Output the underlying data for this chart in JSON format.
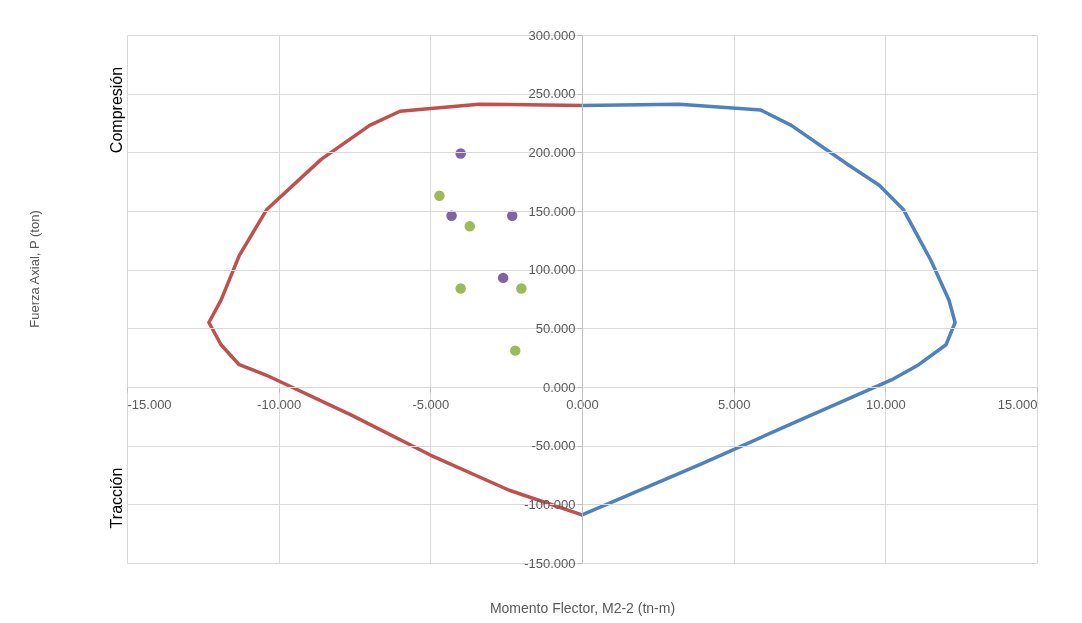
{
  "chart_data": {
    "type": "line",
    "xlabel": "Momento Flector, M2-2 (tn-m)",
    "annotations": [
      "Fuerza Axial, P (ton)",
      "Compresión",
      "Tracción"
    ],
    "xlim": [
      -15,
      15
    ],
    "ylim": [
      -150,
      300
    ],
    "xticks": [
      {
        "value": -15,
        "label": "-15.000"
      },
      {
        "value": -10,
        "label": "-10.000"
      },
      {
        "value": -5,
        "label": "-5.000"
      },
      {
        "value": 0,
        "label": "0.000"
      },
      {
        "value": 5,
        "label": "5.000"
      },
      {
        "value": 10,
        "label": "10.000"
      },
      {
        "value": 15,
        "label": "15.000"
      }
    ],
    "yticks": [
      {
        "value": -150,
        "label": "-150.000"
      },
      {
        "value": -100,
        "label": "-100.000"
      },
      {
        "value": -50,
        "label": "-50.000"
      },
      {
        "value": 0,
        "label": "0.000"
      },
      {
        "value": 50,
        "label": "50.000"
      },
      {
        "value": 100,
        "label": "100.000"
      },
      {
        "value": 150,
        "label": "150.000"
      },
      {
        "value": 200,
        "label": "200.000"
      },
      {
        "value": 250,
        "label": "250.000"
      },
      {
        "value": 300,
        "label": "300.000"
      }
    ],
    "grid": true,
    "series": [
      {
        "type": "line",
        "color": "#c0504d",
        "x": [
          0,
          -3.4,
          -6,
          -7,
          -8.6,
          -10.4,
          -11.3,
          -11.9,
          -12.3,
          -11.9,
          -11.3,
          -10.4,
          -7.6,
          -5,
          -2.4,
          0
        ],
        "values": [
          240,
          241,
          235,
          223,
          194,
          151,
          112,
          74,
          55,
          36,
          19,
          10,
          -24,
          -58,
          -88,
          -109
        ]
      },
      {
        "type": "line",
        "color": "#4f81bd",
        "x": [
          0,
          3.2,
          5.9,
          6.9,
          8.8,
          9.8,
          10.6,
          11.5,
          12.1,
          12.3,
          12,
          11.1,
          10.2,
          7.2,
          3.9,
          0
        ],
        "values": [
          240,
          241,
          236,
          223,
          189,
          172,
          151,
          108,
          74,
          55,
          36,
          19,
          6,
          -28,
          -66,
          -109
        ]
      },
      {
        "type": "scatter",
        "color": "#8064a2",
        "x": [
          -4,
          -4.3,
          -2.3,
          -2.6
        ],
        "values": [
          199,
          146,
          146,
          93
        ]
      },
      {
        "type": "scatter",
        "color": "#9bbb59",
        "x": [
          -4.7,
          -3.7,
          -4,
          -2,
          -2.2
        ],
        "values": [
          163,
          137,
          84,
          84,
          31
        ]
      }
    ]
  }
}
